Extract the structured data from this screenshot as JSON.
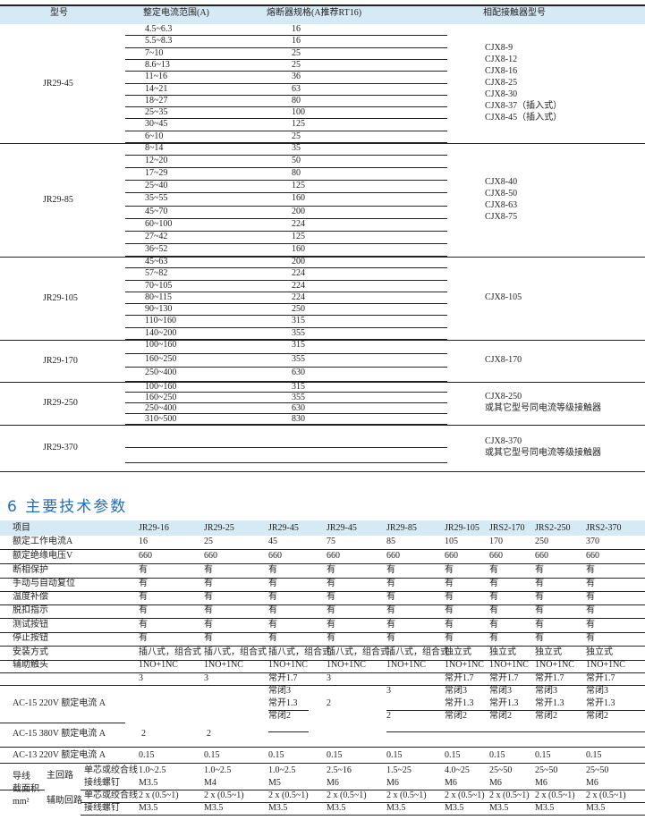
{
  "selection_table": {
    "headers": [
      "型号",
      "整定电流范围(A)",
      "熔断器规格(A推荐RT16)",
      "相配接触器型号"
    ],
    "groups": [
      {
        "model": "JR29-45",
        "rows": [
          [
            "4.5~6.3",
            "16"
          ],
          [
            "5.5~8.3",
            "16"
          ],
          [
            "7~10",
            "25"
          ],
          [
            "8.6~13",
            "25"
          ],
          [
            "11~16",
            "36"
          ],
          [
            "14~21",
            "63"
          ],
          [
            "18~27",
            "80"
          ],
          [
            "25~35",
            "100"
          ],
          [
            "30~45",
            "125"
          ],
          [
            "6~10",
            "25"
          ]
        ],
        "contactors": [
          "CJX8-9",
          "CJX8-12",
          "CJX8-16",
          "CJX8-25",
          "CJX8-30",
          "CJX8-37（插入式）",
          "CJX8-45（插入式）"
        ]
      },
      {
        "model": "JR29-85",
        "rows": [
          [
            "8~14",
            "35"
          ],
          [
            "12~20",
            "50"
          ],
          [
            "17~29",
            "80"
          ],
          [
            "25~40",
            "125"
          ],
          [
            "35~55",
            "160"
          ],
          [
            "45~70",
            "200"
          ],
          [
            "60~100",
            "224"
          ],
          [
            "27~42",
            "125"
          ],
          [
            "36~52",
            "160"
          ]
        ],
        "contactors": [
          "CJX8-40",
          "CJX8-50",
          "CJX8-63",
          "CJX8-75"
        ]
      },
      {
        "model": "JR29-105",
        "rows": [
          [
            "45~63",
            "200"
          ],
          [
            "57~82",
            "224"
          ],
          [
            "70~105",
            "224"
          ],
          [
            "80~115",
            "224"
          ],
          [
            "90~130",
            "250"
          ],
          [
            "110~160",
            "315"
          ],
          [
            "140~200",
            "355"
          ]
        ],
        "contactors": [
          "CJX8-105"
        ]
      },
      {
        "model": "JR29-170",
        "rows": [
          [
            "100~160",
            "315"
          ],
          [
            "160~250",
            "355"
          ],
          [
            "250~400",
            "630"
          ]
        ],
        "contactors": [
          "CJX8-170"
        ]
      },
      {
        "model": "JR29-250",
        "rows": [
          [
            "100~160",
            "315"
          ],
          [
            "160~250",
            "355"
          ],
          [
            "250~400",
            "630"
          ],
          [
            "310~500",
            "830"
          ]
        ],
        "contactors": [
          "CJX8-250",
          "或其它型号同电流等级接触器"
        ]
      },
      {
        "model": "JR29-370",
        "rows": [
          [
            "",
            ""
          ],
          [
            "",
            ""
          ]
        ],
        "contactors": [
          "CJX8-370",
          "或其它型号同电流等级接触器"
        ]
      }
    ]
  },
  "section_title": "6 主要技术参数",
  "spec_table": {
    "header_label": "项目",
    "models": [
      "JR29-16",
      "JR29-25",
      "JR29-45",
      "JR29-45",
      "JR29-85",
      "JR29-105",
      "JRS2-170",
      "JRS2-250",
      "JRS2-370"
    ],
    "rows": [
      {
        "label": "额定工作电流A",
        "values": [
          "16",
          "25",
          "45",
          "75",
          "85",
          "105",
          "170",
          "250",
          "370"
        ]
      },
      {
        "label": "额定绝缘电压V",
        "values": [
          "660",
          "660",
          "660",
          "660",
          "660",
          "660",
          "660",
          "660",
          "660"
        ]
      },
      {
        "label": "断相保护",
        "values": [
          "有",
          "有",
          "有",
          "有",
          "有",
          "有",
          "有",
          "有",
          "有"
        ]
      },
      {
        "label": "手动与自动复位",
        "values": [
          "有",
          "有",
          "有",
          "有",
          "有",
          "有",
          "有",
          "有",
          "有"
        ]
      },
      {
        "label": "温度补偿",
        "values": [
          "有",
          "有",
          "有",
          "有",
          "有",
          "有",
          "有",
          "有",
          "有"
        ]
      },
      {
        "label": "脱扣指示",
        "values": [
          "有",
          "有",
          "有",
          "有",
          "有",
          "有",
          "有",
          "有",
          "有"
        ]
      },
      {
        "label": "测试按钮",
        "values": [
          "有",
          "有",
          "有",
          "有",
          "有",
          "有",
          "有",
          "有",
          "有"
        ]
      },
      {
        "label": "停止按钮",
        "values": [
          "有",
          "有",
          "有",
          "有",
          "有",
          "有",
          "有",
          "有",
          "有"
        ]
      },
      {
        "label": "安装方式",
        "values": [
          "插八式，组合式",
          "插八式，组合式",
          "插八式，组合式",
          "插八式，组合式",
          "插八式，组合式",
          "独立式",
          "独立式",
          "独立式",
          "独立式"
        ]
      },
      {
        "label": "辅助触头",
        "values": [
          "1NO+1NC",
          "1NO+1NC",
          "1NO+1NC",
          "1NO+1NC",
          "1NO+1NC",
          "1NO+1NC",
          "1NO+1NC",
          "1NO+1NC",
          "1NO+1NC"
        ]
      }
    ],
    "ac15_220_label": "AC-15 220V 额定电流 A",
    "ac15_380_label": "AC-15 380V 额定电流 A",
    "ac15_cells": {
      "r1": [
        "3",
        "3",
        "常开1.7",
        "3",
        "",
        "常开1.7",
        "常开1.7",
        "常开1.7",
        "常开1.7"
      ],
      "r2": [
        "",
        "",
        "常闭3",
        "",
        "3",
        "常闭3",
        "常闭3",
        "常闭3",
        "常闭3"
      ],
      "r3": [
        "",
        "",
        "常开1.3",
        "2",
        "",
        "常开1.3",
        "常开1.3",
        "常开1.3",
        "常开1.3"
      ],
      "r4": [
        "",
        "",
        "常闭2",
        "",
        "2",
        "常闭2",
        "常闭2",
        "常闭2",
        "常闭2"
      ],
      "r5": [
        "2",
        "2",
        "",
        "",
        "",
        "",
        "",
        "",
        ""
      ]
    },
    "ac13": {
      "label": "AC-13 220V 额定电流 A",
      "values": [
        "0.15",
        "0.15",
        "0.15",
        "0.15",
        "0.15",
        "0.15",
        "0.15",
        "0.15",
        "0.15"
      ]
    },
    "wire": {
      "label1": "导线",
      "label2": "截面积",
      "label3": "mm²",
      "main_label": "主回路",
      "aux_label": "辅助回路",
      "rows": [
        {
          "sub": "单芯或绞合线",
          "values": [
            "1.0~2.5",
            "1.0~2.5",
            "1.0~2.5",
            "2.5~16",
            "1.5~25",
            "4.0~25",
            "25~50",
            "25~50",
            "25~50"
          ]
        },
        {
          "sub": "接线螺钉",
          "values": [
            "M3.5",
            "M4",
            "M5",
            "M6",
            "M6",
            "M6",
            "M6",
            "M6",
            "M6"
          ]
        },
        {
          "sub": "单芯或绞合线",
          "values": [
            "2 x (0.5~1)",
            "2 x (0.5~1)",
            "2 x (0.5~1)",
            "2 x (0.5~1)",
            "2 x (0.5~1)",
            "2 x (0.5~1)",
            "2 x (0.5~1)",
            "2 x (0.5~1)",
            "2 x (0.5~1)"
          ]
        },
        {
          "sub": "接线螺钉",
          "values": [
            "M3.5",
            "M3.5",
            "M3.5",
            "M3.5",
            "M3.5",
            "M3.5",
            "M3.5",
            "M3.5",
            "M3.5"
          ]
        }
      ]
    }
  },
  "colors": {
    "header_band": "#d6eaf6",
    "title": "#1f6fb8"
  }
}
